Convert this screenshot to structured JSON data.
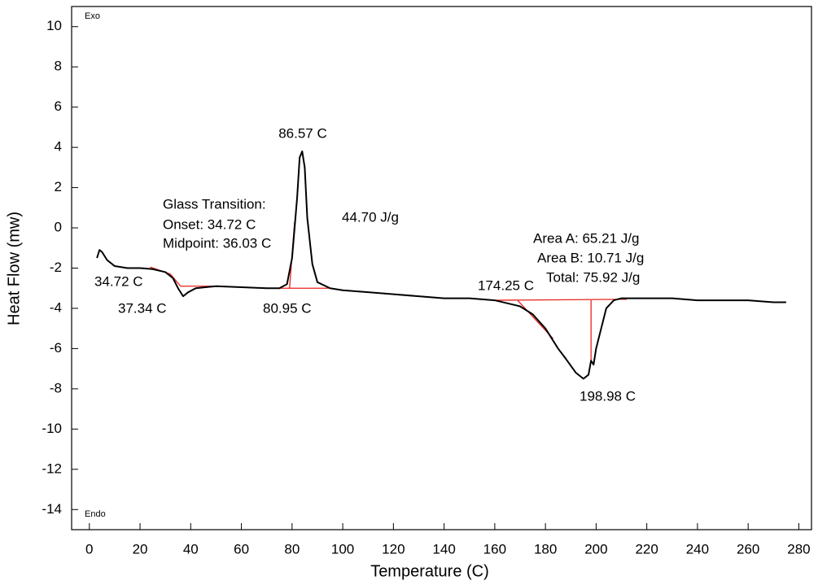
{
  "chart_data": {
    "type": "line",
    "xlabel": "Temperature (C)",
    "ylabel": "Heat Flow (mw)",
    "xlim": [
      -7,
      285
    ],
    "ylim": [
      -15,
      11
    ],
    "xticks": [
      0,
      20,
      40,
      60,
      80,
      100,
      120,
      140,
      160,
      180,
      200,
      220,
      240,
      260,
      280
    ],
    "yticks": [
      -14,
      -12,
      -10,
      -8,
      -6,
      -4,
      -2,
      0,
      2,
      4,
      6,
      8,
      10
    ],
    "series": [
      {
        "color": "#000000",
        "x": [
          3,
          4,
          5,
          7,
          10,
          15,
          20,
          25,
          30,
          33,
          35,
          37,
          39,
          42,
          50,
          60,
          70,
          75,
          78,
          80,
          82,
          83,
          84,
          85,
          86,
          88,
          90,
          95,
          100,
          110,
          120,
          130,
          140,
          150,
          160,
          170,
          175,
          180,
          185,
          188,
          192,
          195,
          197,
          198,
          199,
          200,
          202,
          204,
          207,
          210,
          220,
          230,
          240,
          250,
          260,
          270,
          275
        ],
        "values": [
          -1.5,
          -1.1,
          -1.2,
          -1.6,
          -1.9,
          -2.0,
          -2.0,
          -2.05,
          -2.2,
          -2.5,
          -3.0,
          -3.4,
          -3.2,
          -3.0,
          -2.9,
          -2.95,
          -3.0,
          -3.0,
          -2.8,
          -1.5,
          1.5,
          3.5,
          3.8,
          3.0,
          0.5,
          -1.8,
          -2.7,
          -3.0,
          -3.1,
          -3.2,
          -3.3,
          -3.4,
          -3.5,
          -3.5,
          -3.6,
          -3.9,
          -4.3,
          -5.0,
          -6.0,
          -6.5,
          -7.2,
          -7.5,
          -7.3,
          -6.6,
          -6.8,
          -6.0,
          -5.0,
          -4.0,
          -3.6,
          -3.5,
          -3.5,
          -3.5,
          -3.6,
          -3.6,
          -3.6,
          -3.7,
          -3.7
        ]
      }
    ],
    "annotation_lines": [
      {
        "color": "#e8221c",
        "x": [
          24,
          32,
          36,
          51
        ],
        "values": [
          -1.95,
          -2.3,
          -2.9,
          -2.9
        ]
      },
      {
        "color": "#e8221c",
        "x": [
          68,
          95
        ],
        "values": [
          -3.0,
          -3.0
        ]
      },
      {
        "color": "#e8221c",
        "x": [
          79,
          81
        ],
        "values": [
          -3.0,
          0.3
        ]
      },
      {
        "color": "#e8221c",
        "x": [
          159,
          212
        ],
        "values": [
          -3.6,
          -3.55
        ]
      },
      {
        "color": "#e8221c",
        "x": [
          169,
          183
        ],
        "values": [
          -3.6,
          -5.5
        ]
      },
      {
        "color": "#e8221c",
        "x": [
          198,
          198
        ],
        "values": [
          -3.6,
          -6.6
        ]
      }
    ],
    "annotations": [
      "Exo",
      "Endo",
      "86.57 C",
      "Glass Transition:",
      "Onset: 34.72 C",
      "Midpoint: 36.03 C",
      "44.70 J/g",
      "34.72 C",
      "37.34 C",
      "80.95 C",
      "174.25 C",
      "Area A: 65.21 J/g",
      "Area B: 10.71 J/g",
      "Total: 75.92 J/g",
      "198.98 C"
    ]
  }
}
